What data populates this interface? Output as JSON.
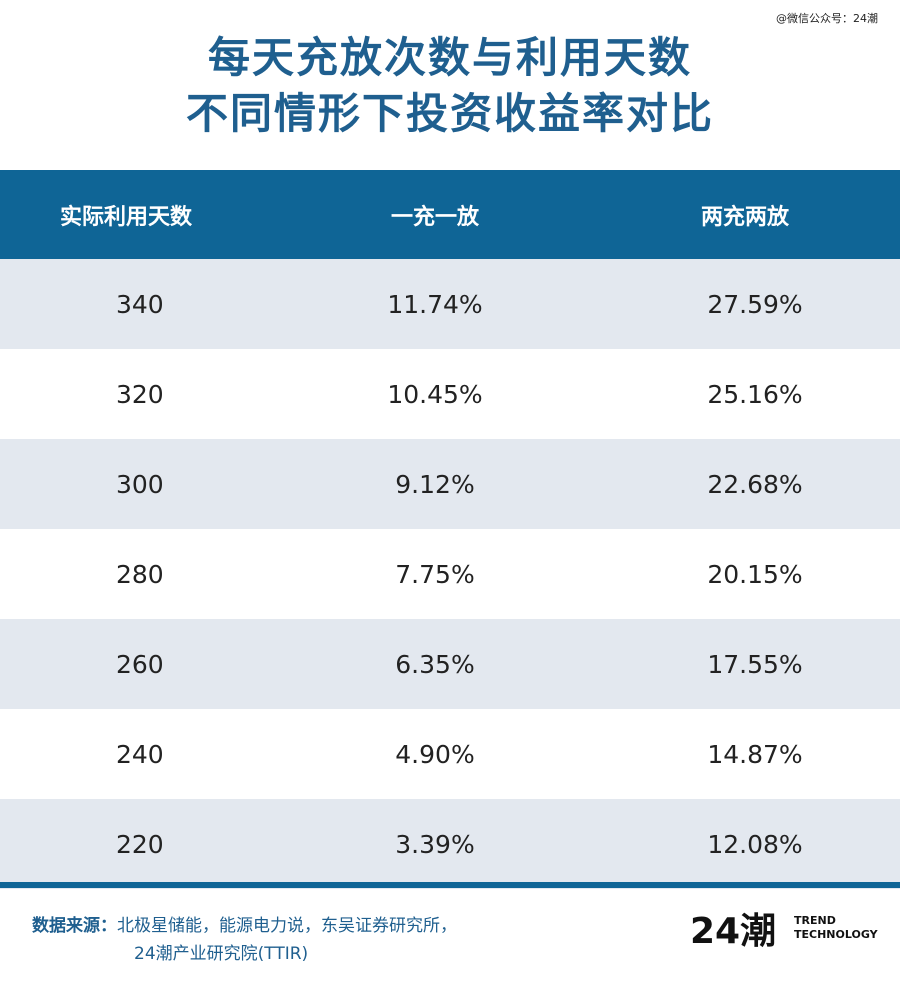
{
  "watermark": "@微信公众号：24潮",
  "title": {
    "line1": "每天充放次数与利用天数",
    "line2": "不同情形下投资收益率对比"
  },
  "chart_data": {
    "type": "table",
    "columns": [
      "实际利用天数",
      "一充一放",
      "两充两放"
    ],
    "rows": [
      [
        "340",
        "11.74%",
        "27.59%"
      ],
      [
        "320",
        "10.45%",
        "25.16%"
      ],
      [
        "300",
        "9.12%",
        "22.68%"
      ],
      [
        "280",
        "7.75%",
        "20.15%"
      ],
      [
        "260",
        "6.35%",
        "17.55%"
      ],
      [
        "240",
        "4.90%",
        "14.87%"
      ],
      [
        "220",
        "3.39%",
        "12.08%"
      ]
    ]
  },
  "colors": {
    "header_bg": "#0f6596",
    "title": "#1f5f8f",
    "stripe": "#e3e8ef"
  },
  "source": {
    "label": "数据来源：",
    "line1": "北极星储能，能源电力说，东吴证券研究所，",
    "line2": "24潮产业研究院(TTIR)"
  },
  "logo": {
    "mark": "24潮",
    "text_line1": "TREND",
    "text_line2": "TECHNOLOGY"
  }
}
